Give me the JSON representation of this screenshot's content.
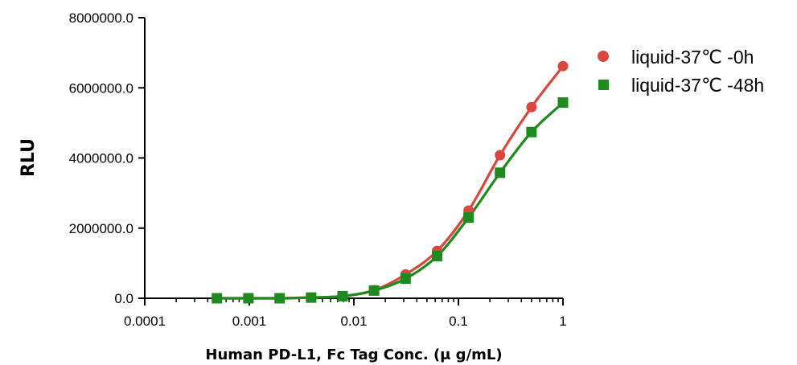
{
  "chart_data": {
    "type": "scatter",
    "title": "",
    "xlabel": "Human PD-L1, Fc Tag Conc. (μ g/mL)",
    "ylabel": "RLU",
    "x_scale": "log",
    "xlim": [
      0.0001,
      1
    ],
    "ylim": [
      0,
      8000000
    ],
    "x_ticks": [
      0.0001,
      0.001,
      0.01,
      0.1,
      1
    ],
    "x_tick_labels": [
      "0.0001",
      "0.001",
      "0.01",
      "0.1",
      "1"
    ],
    "y_ticks": [
      0,
      2000000,
      4000000,
      6000000,
      8000000
    ],
    "y_tick_labels": [
      "0.0",
      "2000000.0",
      "4000000.0",
      "6000000.0",
      "8000000.0"
    ],
    "grid": false,
    "legend_position": "top-right",
    "fitted_curves": true,
    "series": [
      {
        "name": "liquid-37℃ -0h",
        "marker": "circle",
        "color": "#d9473f",
        "x": [
          0.00049,
          0.00098,
          0.00195,
          0.0039,
          0.0078,
          0.0156,
          0.03125,
          0.0625,
          0.125,
          0.25,
          0.5,
          1
        ],
        "y": [
          0,
          0,
          0,
          20000,
          60000,
          230000,
          680000,
          1350000,
          2500000,
          4080000,
          5450000,
          6620000
        ]
      },
      {
        "name": "liquid-37℃ -48h",
        "marker": "square",
        "color": "#1f8a1f",
        "x": [
          0.00049,
          0.00098,
          0.00195,
          0.0039,
          0.0078,
          0.0156,
          0.03125,
          0.0625,
          0.125,
          0.25,
          0.5,
          1
        ],
        "y": [
          0,
          0,
          0,
          20000,
          60000,
          220000,
          560000,
          1200000,
          2300000,
          3580000,
          4740000,
          5580000
        ]
      }
    ]
  }
}
